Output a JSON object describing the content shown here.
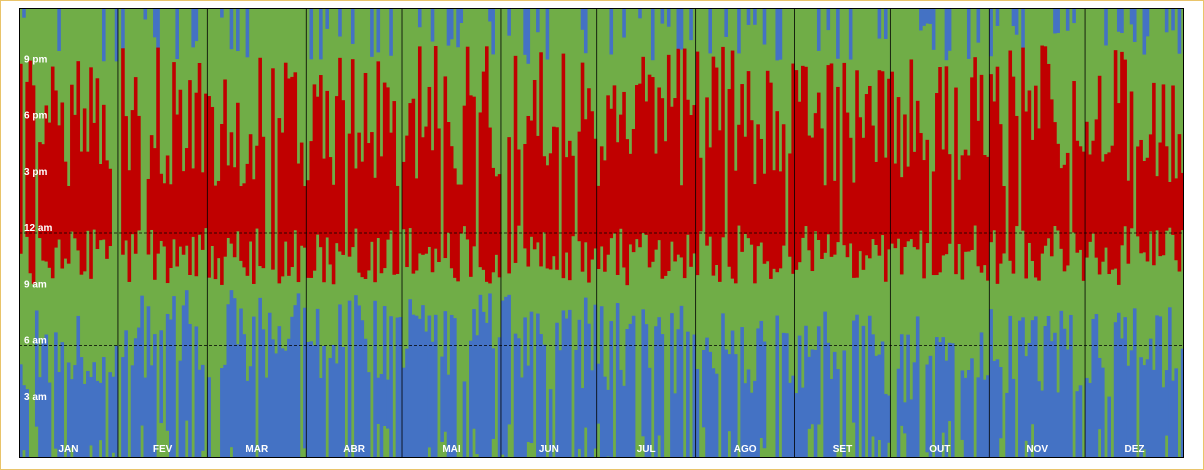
{
  "chart_data": {
    "type": "heatmap",
    "title": "",
    "xlabel": "",
    "ylabel": "",
    "x_tick_labels": [
      "JAN",
      "FEV",
      "MAR",
      "ABR",
      "MAI",
      "JUN",
      "JUL",
      "AGO",
      "SET",
      "OUT",
      "NOV",
      "DEZ"
    ],
    "month_days": [
      31,
      28,
      31,
      30,
      31,
      30,
      31,
      31,
      30,
      31,
      30,
      31
    ],
    "y_tick_labels": [
      "9 pm",
      "6 pm",
      "3 pm",
      "12 am",
      "9 am",
      "6 am",
      "3 am"
    ],
    "y_tick_hours": [
      21,
      18,
      15,
      12,
      9,
      6,
      3
    ],
    "y_range_hours": [
      0,
      24
    ],
    "reference_lines_hours": [
      12,
      6
    ],
    "legend": "none",
    "colors": {
      "off_peak": "#4472C4",
      "intermediate": "#70AD47",
      "peak": "#C00000",
      "border": "#000000",
      "page_border": "#E9C46A",
      "label": "#FFFFFF"
    },
    "series": [
      {
        "color": "#C00000",
        "level": "high",
        "typical_hours": [
          11,
          20
        ]
      },
      {
        "color": "#70AD47",
        "level": "medium",
        "typical_hours": [
          [
            7,
            11
          ],
          [
            20,
            24
          ]
        ]
      },
      {
        "color": "#4472C4",
        "level": "low",
        "typical_hours": [
          0,
          9
        ]
      }
    ],
    "seed": 7
  }
}
